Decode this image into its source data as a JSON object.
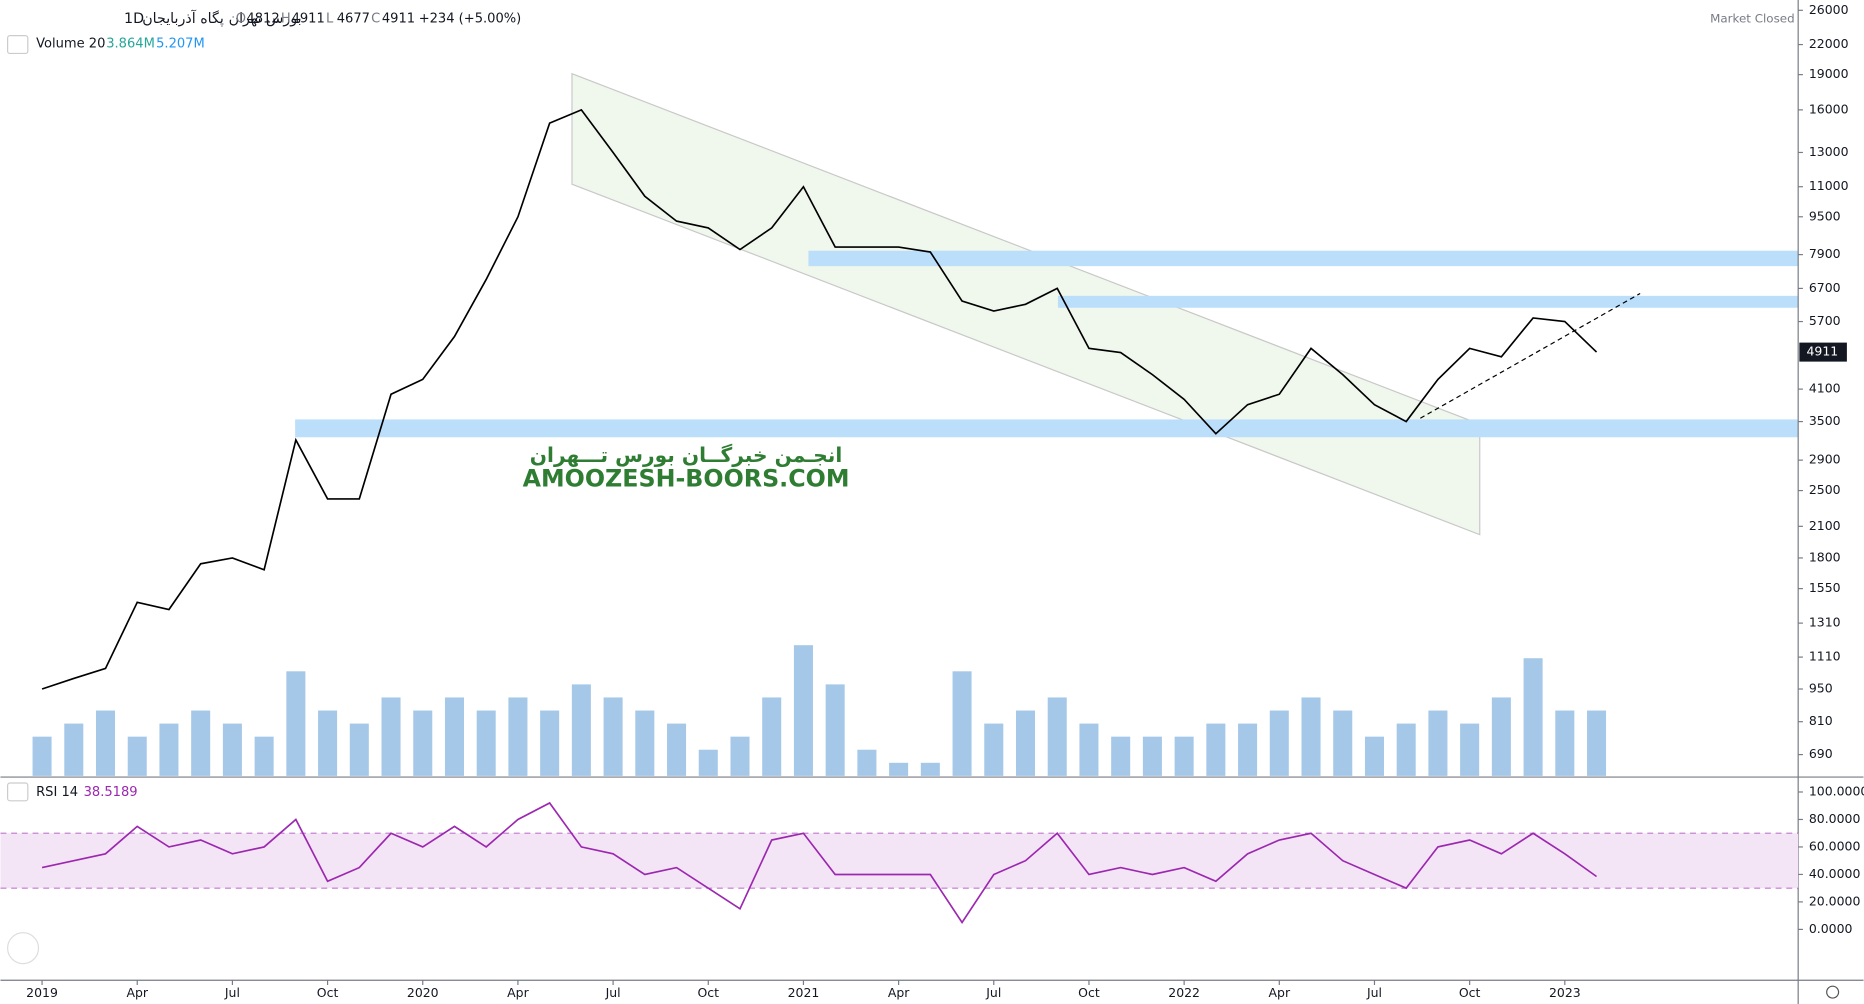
{
  "header": {
    "symbol": "پگاه آذربایجان",
    "interval": "1D",
    "exchange": "بورس تهران",
    "ohlc": [
      {
        "label": "O",
        "value": 4812
      },
      {
        "label": "H",
        "value": 4911
      },
      {
        "label": "L",
        "value": 4677
      },
      {
        "label": "C",
        "value": 4911
      }
    ],
    "change": "+234 (+5.00%)",
    "status": "Market Closed"
  },
  "watermark": {
    "line1": "انجـمن خبرگــان بورس تـــهران",
    "line2": "AMOOZESH-BOORS.COM"
  },
  "chart_data": [
    {
      "type": "line",
      "log_scale": true,
      "color": "#000000",
      "categories": [
        "2019-01",
        "2019-02",
        "2019-03",
        "2019-04",
        "2019-05",
        "2019-06",
        "2019-07",
        "2019-08",
        "2019-09",
        "2019-10",
        "2019-11",
        "2019-12",
        "2020-01",
        "2020-02",
        "2020-03",
        "2020-04",
        "2020-05",
        "2020-06",
        "2020-07",
        "2020-08",
        "2020-09",
        "2020-10",
        "2020-11",
        "2020-12",
        "2021-01",
        "2021-02",
        "2021-03",
        "2021-04",
        "2021-05",
        "2021-06",
        "2021-07",
        "2021-08",
        "2021-09",
        "2021-10",
        "2021-11",
        "2021-12",
        "2022-01",
        "2022-02",
        "2022-03",
        "2022-04",
        "2022-05",
        "2022-06",
        "2022-07",
        "2022-08",
        "2022-09",
        "2022-10",
        "2022-11",
        "2022-12",
        "2023-01",
        "2023-02"
      ],
      "values": [
        950,
        1000,
        1050,
        1450,
        1400,
        1750,
        1800,
        1700,
        3200,
        2400,
        2400,
        4000,
        4300,
        5300,
        7000,
        9500,
        15000,
        16000,
        13000,
        10500,
        9300,
        9000,
        8100,
        9000,
        11000,
        8200,
        8200,
        8200,
        8000,
        6300,
        6000,
        6200,
        6700,
        5000,
        4900,
        4400,
        3900,
        3300,
        3800,
        4000,
        5000,
        4400,
        3800,
        3500,
        4300,
        5000,
        4800,
        5800,
        5700,
        4911
      ],
      "ylim": [
        622,
        27340
      ],
      "yticks": [
        26000,
        22000,
        19000,
        16000,
        13000,
        11000,
        9500,
        7900,
        6700,
        5700,
        4100,
        3500,
        2900,
        2500,
        2100,
        1800,
        1550,
        1310,
        1110,
        950,
        810,
        690
      ],
      "xticks": [
        {
          "value": "2019-01",
          "label": "2019"
        },
        {
          "value": "2019-04",
          "label": "Apr"
        },
        {
          "value": "2019-07",
          "label": "Jul"
        },
        {
          "value": "2019-10",
          "label": "Oct"
        },
        {
          "value": "2020-01",
          "label": "2020"
        },
        {
          "value": "2020-04",
          "label": "Apr"
        },
        {
          "value": "2020-07",
          "label": "Jul"
        },
        {
          "value": "2020-10",
          "label": "Oct"
        },
        {
          "value": "2021-01",
          "label": "2021"
        },
        {
          "value": "2021-04",
          "label": "Apr"
        },
        {
          "value": "2021-07",
          "label": "Jul"
        },
        {
          "value": "2021-10",
          "label": "Oct"
        },
        {
          "value": "2022-01",
          "label": "2022"
        },
        {
          "value": "2022-04",
          "label": "Apr"
        },
        {
          "value": "2022-07",
          "label": "Jul"
        },
        {
          "value": "2022-10",
          "label": "Oct"
        },
        {
          "value": "2023-01",
          "label": "2023"
        }
      ]
    },
    {
      "type": "bar",
      "title": "Volume 20",
      "legend_values": [
        "3.864M",
        "5.207M"
      ],
      "color": "#5b9bd5",
      "values": [
        3,
        4,
        5,
        3,
        4,
        5,
        4,
        3,
        8,
        5,
        4,
        6,
        5,
        6,
        5,
        6,
        5,
        7,
        6,
        5,
        4,
        2,
        3,
        6,
        10,
        7,
        2,
        1,
        1,
        8,
        4,
        5,
        6,
        4,
        3,
        3,
        3,
        4,
        4,
        5,
        6,
        5,
        3,
        4,
        5,
        4,
        6,
        9,
        5,
        5
      ]
    },
    {
      "type": "line",
      "title": "RSI 14",
      "color": "#9c27b0",
      "values": [
        45,
        50,
        55,
        75,
        60,
        65,
        55,
        60,
        80,
        35,
        45,
        70,
        60,
        75,
        60,
        80,
        92,
        60,
        55,
        40,
        45,
        30,
        15,
        65,
        70,
        40,
        40,
        40,
        40,
        5,
        40,
        50,
        70,
        40,
        45,
        40,
        45,
        35,
        55,
        65,
        70,
        50,
        40,
        30,
        60,
        65,
        55,
        70,
        55,
        38.5189
      ],
      "band": [
        30,
        70
      ],
      "ylim": [
        -37,
        110
      ],
      "yticks": [
        {
          "value": 100,
          "label": "100.0000"
        },
        {
          "value": 80,
          "label": "80.0000"
        },
        {
          "value": 60,
          "label": "60.0000"
        },
        {
          "value": 40,
          "label": "40.0000"
        },
        {
          "value": 20,
          "label": "20.0000"
        },
        {
          "value": 0,
          "label": "0.0000"
        }
      ]
    }
  ]
}
